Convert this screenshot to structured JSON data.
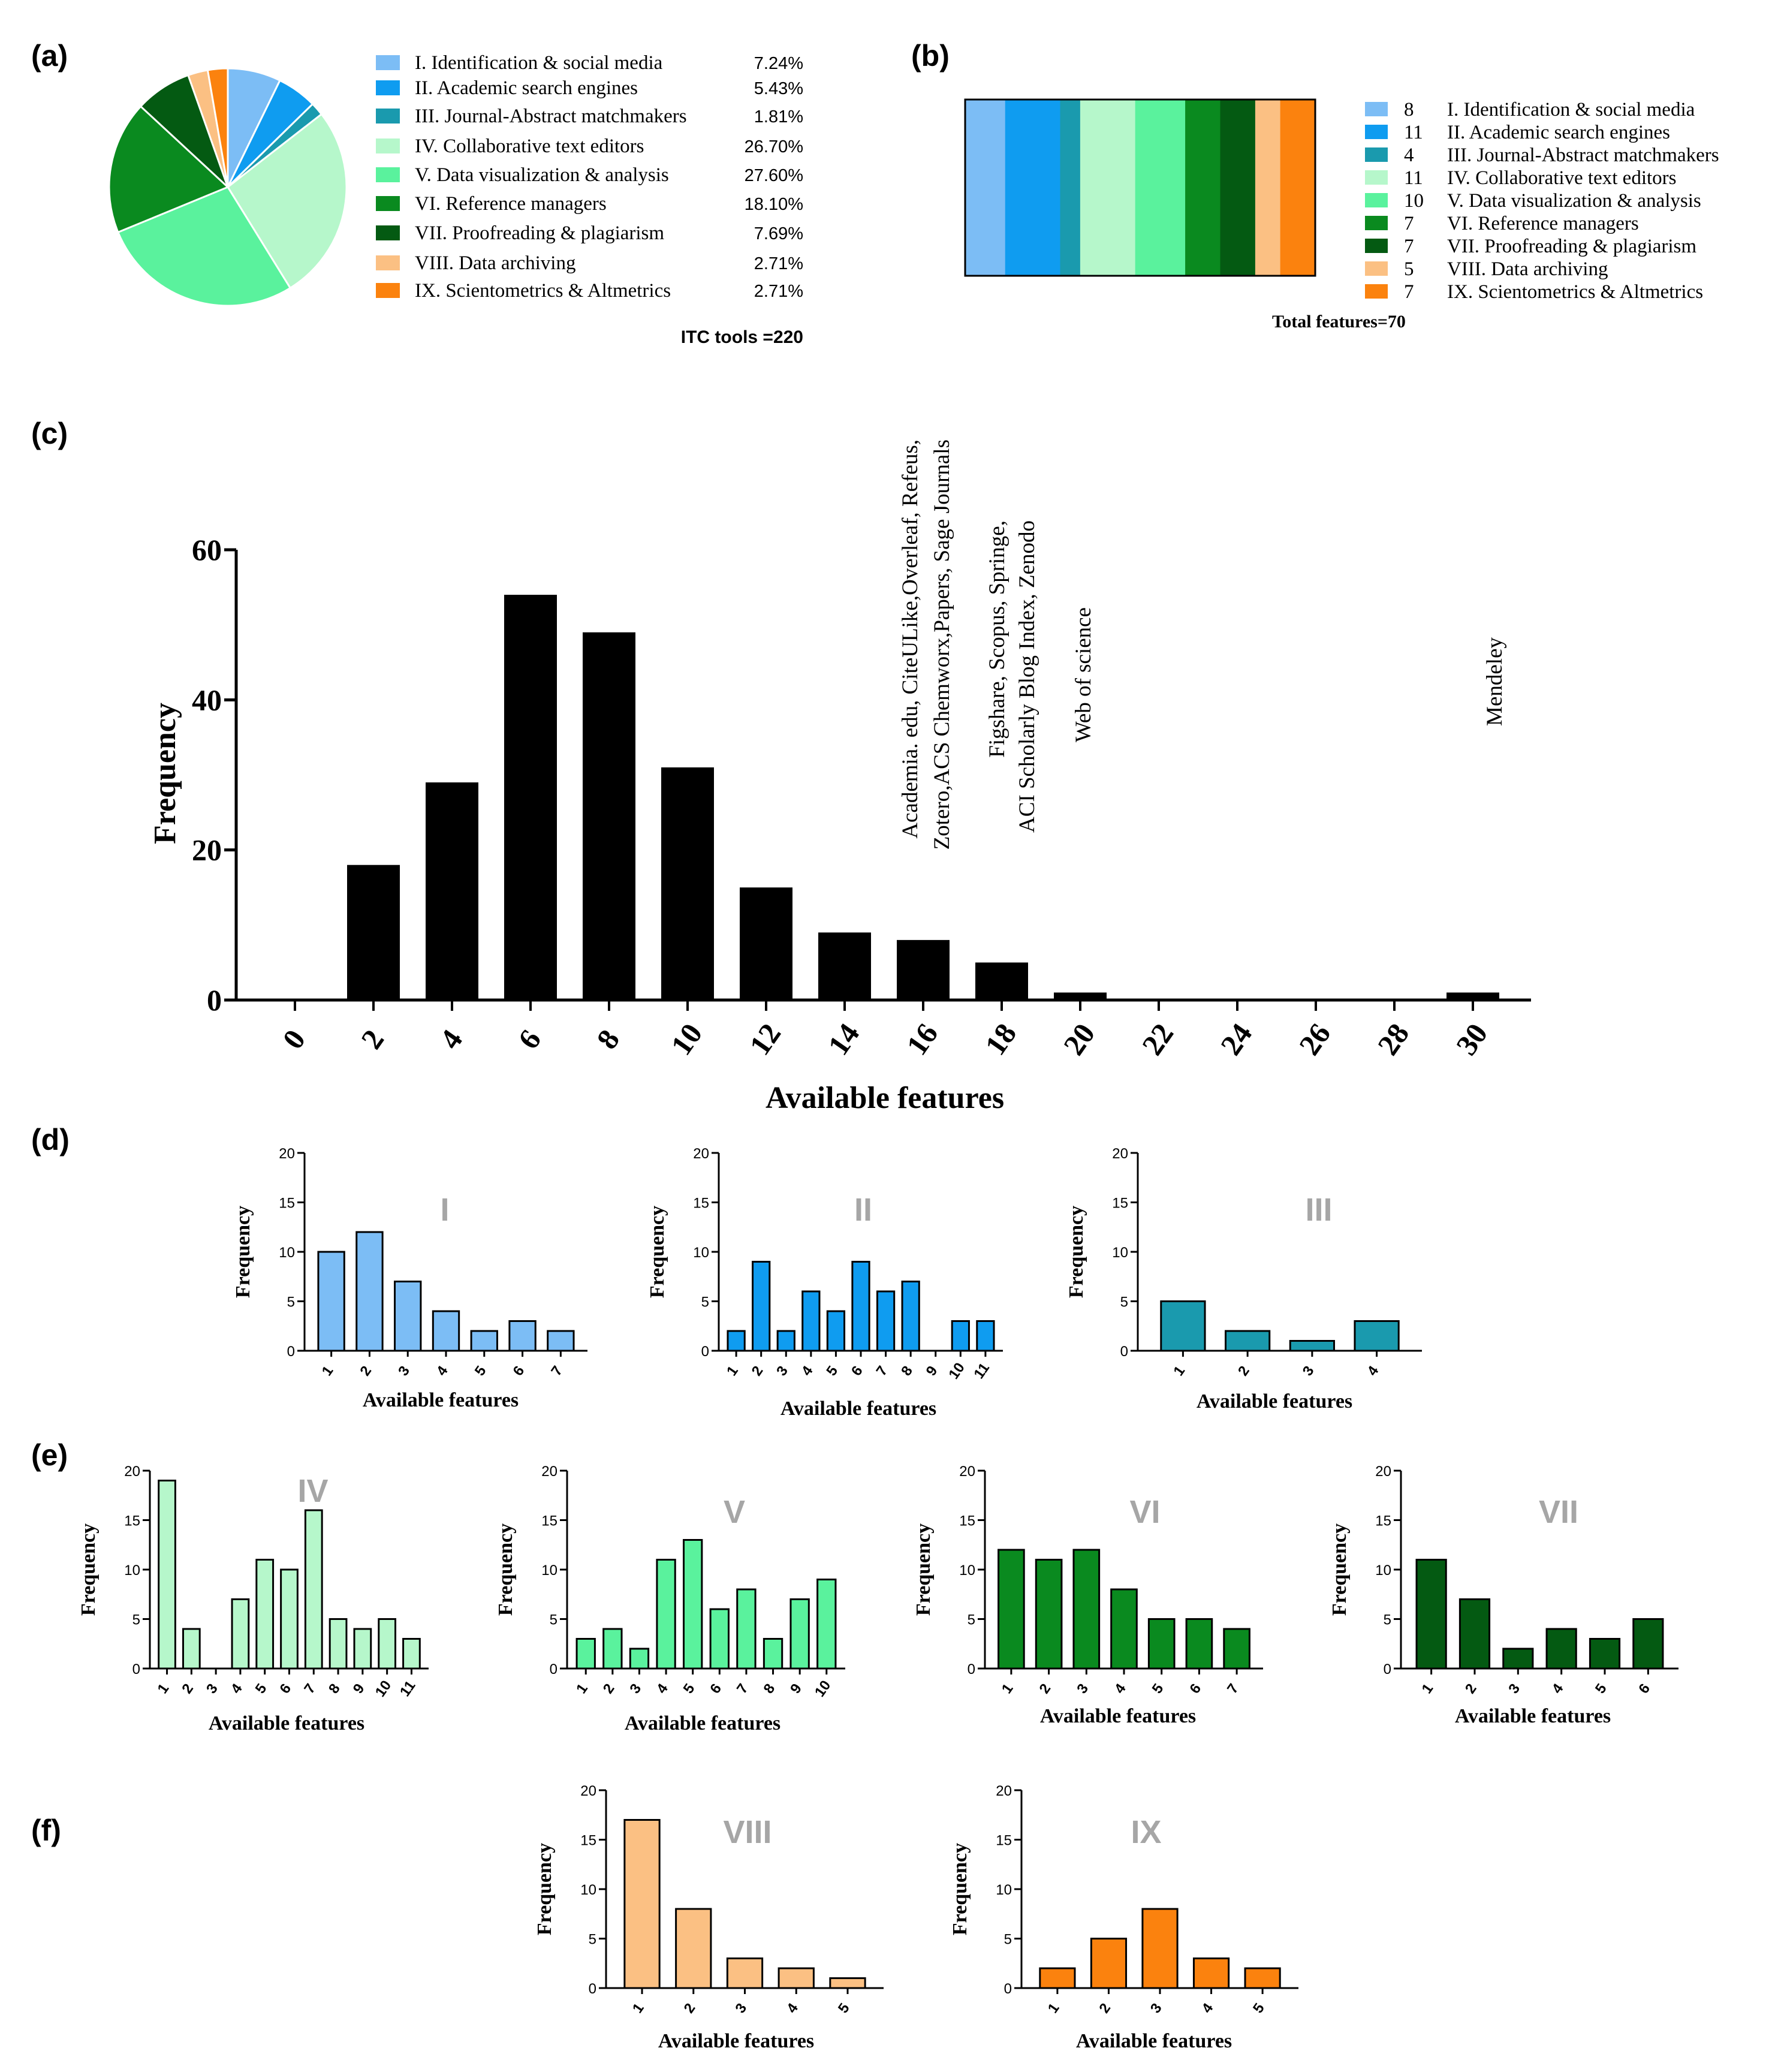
{
  "panel_labels": {
    "a": "(a)",
    "b": "(b)",
    "c": "(c)",
    "d": "(d)",
    "e": "(e)",
    "f": "(f)"
  },
  "colors": {
    "I": "#7cbdf5",
    "II": "#0f9cf0",
    "III": "#1a9aae",
    "IV": "#b6f7cb",
    "V": "#5af29d",
    "VI": "#0a8a1f",
    "VII": "#045a12",
    "VIII": "#fbc083",
    "IX": "#fb820e",
    "main": "#000000"
  },
  "chart_data": [
    {
      "id": "a",
      "type": "pie",
      "labels": [
        "I. Identification & social media",
        "II. Academic search engines",
        "III. Journal-Abstract matchmakers",
        "IV. Collaborative text editors",
        "V. Data visualization & analysis",
        "VI. Reference managers",
        "VII. Proofreading & plagiarism",
        "VIII. Data archiving",
        "IX. Scientometrics & Altmetrics"
      ],
      "values": [
        7.24,
        5.43,
        1.81,
        26.7,
        27.6,
        18.1,
        7.69,
        2.71,
        2.71
      ],
      "value_labels": [
        "7.24%",
        "5.43%",
        "1.81%",
        "26.70%",
        "27.60%",
        "18.10%",
        "7.69%",
        "2.71%",
        "2.71%"
      ],
      "color_keys": [
        "I",
        "II",
        "III",
        "IV",
        "V",
        "VI",
        "VII",
        "VIII",
        "IX"
      ],
      "footer": "ITC tools =220"
    },
    {
      "id": "b",
      "type": "bar",
      "orientation": "horizontal-stacked",
      "labels": [
        "I. Identification & social media",
        "II. Academic search engines",
        "III. Journal-Abstract matchmakers",
        "IV. Collaborative text editors",
        "V. Data visualization & analysis",
        "VI. Reference managers",
        "VII. Proofreading & plagiarism",
        "VIII. Data archiving",
        "IX. Scientometrics & Altmetrics"
      ],
      "values": [
        8,
        11,
        4,
        11,
        10,
        7,
        7,
        5,
        7
      ],
      "color_keys": [
        "I",
        "II",
        "III",
        "IV",
        "V",
        "VI",
        "VII",
        "VIII",
        "IX"
      ],
      "footer": "Total features=70"
    },
    {
      "id": "c",
      "type": "bar",
      "x": [
        0,
        2,
        4,
        6,
        8,
        10,
        12,
        14,
        16,
        18,
        20,
        22,
        24,
        26,
        28,
        30
      ],
      "values": [
        0,
        18,
        29,
        54,
        49,
        31,
        15,
        9,
        8,
        5,
        1,
        0,
        0,
        0,
        0,
        1
      ],
      "xlabel": "Available features",
      "ylabel": "Frequency",
      "ylim": [
        0,
        60
      ],
      "yticks": [
        0,
        20,
        40,
        60
      ],
      "color_key": "main",
      "annotations": [
        {
          "at_x": 16,
          "lines": [
            "Academia. edu, CiteULike,Overleaf, Refeus,",
            "Zotero,ACS Chemworx,Papers, Sage Journals"
          ]
        },
        {
          "at_x": 18,
          "lines": [
            "Figshare, Scopus, Springe,",
            "ACI Scholarly Blog Index, Zenodo"
          ]
        },
        {
          "at_x": 20,
          "lines": [
            "Web of science"
          ]
        },
        {
          "at_x": 30,
          "lines": [
            "Mendeley"
          ]
        }
      ]
    },
    {
      "id": "I",
      "type": "bar",
      "panel": "d",
      "title": "I",
      "categories": [
        "1",
        "2",
        "3",
        "4",
        "5",
        "6",
        "7"
      ],
      "values": [
        10,
        12,
        7,
        4,
        2,
        3,
        2
      ],
      "xlabel": "Available features",
      "ylabel": "Frequency",
      "ylim": [
        0,
        20
      ],
      "yticks": [
        0,
        5,
        10,
        15,
        20
      ],
      "color_key": "I"
    },
    {
      "id": "II",
      "type": "bar",
      "panel": "d",
      "title": "II",
      "categories": [
        "1",
        "2",
        "3",
        "4",
        "5",
        "6",
        "7",
        "8",
        "9",
        "10",
        "11"
      ],
      "values": [
        2,
        9,
        2,
        6,
        4,
        9,
        6,
        7,
        0,
        3,
        3
      ],
      "xlabel": "Available features",
      "ylabel": "Frequency",
      "ylim": [
        0,
        20
      ],
      "yticks": [
        0,
        5,
        10,
        15,
        20
      ],
      "color_key": "II"
    },
    {
      "id": "III",
      "type": "bar",
      "panel": "d",
      "title": "III",
      "categories": [
        "1",
        "2",
        "3",
        "4"
      ],
      "values": [
        5,
        2,
        1,
        3
      ],
      "xlabel": "Available features",
      "ylabel": "Frequency",
      "ylim": [
        0,
        20
      ],
      "yticks": [
        0,
        5,
        10,
        15,
        20
      ],
      "color_key": "III"
    },
    {
      "id": "IV",
      "type": "bar",
      "panel": "e",
      "title": "IV",
      "categories": [
        "1",
        "2",
        "3",
        "4",
        "5",
        "6",
        "7",
        "8",
        "9",
        "10",
        "11"
      ],
      "values": [
        19,
        4,
        0,
        7,
        11,
        10,
        16,
        5,
        4,
        5,
        3
      ],
      "xlabel": "Available features",
      "ylabel": "Frequency",
      "ylim": [
        0,
        20
      ],
      "yticks": [
        0,
        5,
        10,
        15,
        20
      ],
      "color_key": "IV"
    },
    {
      "id": "V",
      "type": "bar",
      "panel": "e",
      "title": "V",
      "categories": [
        "1",
        "2",
        "3",
        "4",
        "5",
        "6",
        "7",
        "8",
        "9",
        "10"
      ],
      "values": [
        3,
        4,
        2,
        11,
        13,
        6,
        8,
        3,
        7,
        9
      ],
      "xlabel": "Available features",
      "ylabel": "Frequency",
      "ylim": [
        0,
        20
      ],
      "yticks": [
        0,
        5,
        10,
        15,
        20
      ],
      "color_key": "V"
    },
    {
      "id": "VI",
      "type": "bar",
      "panel": "e",
      "title": "VI",
      "categories": [
        "1",
        "2",
        "3",
        "4",
        "5",
        "6",
        "7"
      ],
      "values": [
        12,
        11,
        12,
        8,
        5,
        5,
        4
      ],
      "xlabel": "Available features",
      "ylabel": "Frequency",
      "ylim": [
        0,
        20
      ],
      "yticks": [
        0,
        5,
        10,
        15,
        20
      ],
      "color_key": "VI"
    },
    {
      "id": "VII",
      "type": "bar",
      "panel": "e",
      "title": "VII",
      "categories": [
        "1",
        "2",
        "3",
        "4",
        "5",
        "6"
      ],
      "values": [
        11,
        7,
        2,
        4,
        3,
        5
      ],
      "xlabel": "Available features",
      "ylabel": "Frequency",
      "ylim": [
        0,
        20
      ],
      "yticks": [
        0,
        5,
        10,
        15,
        20
      ],
      "color_key": "VII"
    },
    {
      "id": "VIII",
      "type": "bar",
      "panel": "f",
      "title": "VIII",
      "categories": [
        "1",
        "2",
        "3",
        "4",
        "5"
      ],
      "values": [
        17,
        8,
        3,
        2,
        1
      ],
      "xlabel": "Available features",
      "ylabel": "Frequency",
      "ylim": [
        0,
        20
      ],
      "yticks": [
        0,
        5,
        10,
        15,
        20
      ],
      "color_key": "VIII"
    },
    {
      "id": "IX",
      "type": "bar",
      "panel": "f",
      "title": "IX",
      "categories": [
        "1",
        "2",
        "3",
        "4",
        "5"
      ],
      "values": [
        2,
        5,
        8,
        3,
        2
      ],
      "xlabel": "Available features",
      "ylabel": "Frequency",
      "ylim": [
        0,
        20
      ],
      "yticks": [
        0,
        5,
        10,
        15,
        20
      ],
      "color_key": "IX"
    }
  ]
}
